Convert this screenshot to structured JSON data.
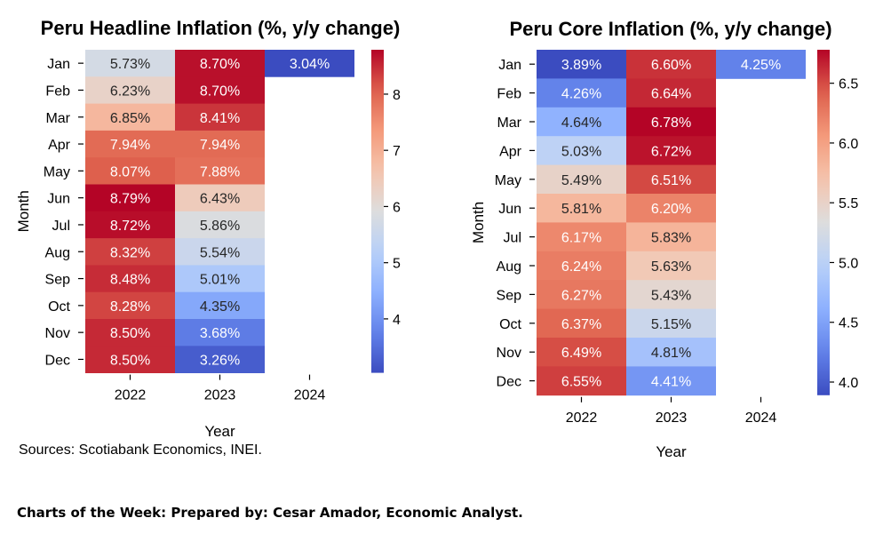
{
  "chart_data": [
    {
      "type": "heatmap",
      "title": "Peru Headline Inflation (%, y/y change)",
      "xlabel": "Year",
      "ylabel": "Month",
      "x": [
        "2022",
        "2023",
        "2024"
      ],
      "y": [
        "Jan",
        "Feb",
        "Mar",
        "Apr",
        "May",
        "Jun",
        "Jul",
        "Aug",
        "Sep",
        "Oct",
        "Nov",
        "Dec"
      ],
      "values": [
        [
          5.73,
          8.7,
          3.04
        ],
        [
          6.23,
          8.7,
          null
        ],
        [
          6.85,
          8.41,
          null
        ],
        [
          7.94,
          7.94,
          null
        ],
        [
          8.07,
          7.88,
          null
        ],
        [
          8.79,
          6.43,
          null
        ],
        [
          8.72,
          5.86,
          null
        ],
        [
          8.32,
          5.54,
          null
        ],
        [
          8.48,
          5.01,
          null
        ],
        [
          8.28,
          4.35,
          null
        ],
        [
          8.5,
          3.68,
          null
        ],
        [
          8.5,
          3.26,
          null
        ]
      ],
      "labels": [
        [
          "5.73%",
          "8.70%",
          "3.04%"
        ],
        [
          "6.23%",
          "8.70%",
          ""
        ],
        [
          "6.85%",
          "8.41%",
          ""
        ],
        [
          "7.94%",
          "7.94%",
          ""
        ],
        [
          "8.07%",
          "7.88%",
          ""
        ],
        [
          "8.79%",
          "6.43%",
          ""
        ],
        [
          "8.72%",
          "5.86%",
          ""
        ],
        [
          "8.32%",
          "5.54%",
          ""
        ],
        [
          "8.48%",
          "5.01%",
          ""
        ],
        [
          "8.28%",
          "4.35%",
          ""
        ],
        [
          "8.50%",
          "3.68%",
          ""
        ],
        [
          "8.50%",
          "3.26%",
          ""
        ]
      ],
      "vmin": 3.04,
      "vmax": 8.79,
      "colorbar_ticks": [
        "4",
        "5",
        "6",
        "7",
        "8"
      ],
      "colorbar_tick_values": [
        4,
        5,
        6,
        7,
        8
      ],
      "colormap": "coolwarm"
    },
    {
      "type": "heatmap",
      "title": "Peru Core Inflation (%, y/y change)",
      "xlabel": "Year",
      "ylabel": "Month",
      "x": [
        "2022",
        "2023",
        "2024"
      ],
      "y": [
        "Jan",
        "Feb",
        "Mar",
        "Apr",
        "May",
        "Jun",
        "Jul",
        "Aug",
        "Sep",
        "Oct",
        "Nov",
        "Dec"
      ],
      "values": [
        [
          3.89,
          6.6,
          4.25
        ],
        [
          4.26,
          6.64,
          null
        ],
        [
          4.64,
          6.78,
          null
        ],
        [
          5.03,
          6.72,
          null
        ],
        [
          5.49,
          6.51,
          null
        ],
        [
          5.81,
          6.2,
          null
        ],
        [
          6.17,
          5.83,
          null
        ],
        [
          6.24,
          5.63,
          null
        ],
        [
          6.27,
          5.43,
          null
        ],
        [
          6.37,
          5.15,
          null
        ],
        [
          6.49,
          4.81,
          null
        ],
        [
          6.55,
          4.41,
          null
        ]
      ],
      "labels": [
        [
          "3.89%",
          "6.60%",
          "4.25%"
        ],
        [
          "4.26%",
          "6.64%",
          ""
        ],
        [
          "4.64%",
          "6.78%",
          ""
        ],
        [
          "5.03%",
          "6.72%",
          ""
        ],
        [
          "5.49%",
          "6.51%",
          ""
        ],
        [
          "5.81%",
          "6.20%",
          ""
        ],
        [
          "6.17%",
          "5.83%",
          ""
        ],
        [
          "6.24%",
          "5.63%",
          ""
        ],
        [
          "6.27%",
          "5.43%",
          ""
        ],
        [
          "6.37%",
          "5.15%",
          ""
        ],
        [
          "6.49%",
          "4.81%",
          ""
        ],
        [
          "6.55%",
          "4.41%",
          ""
        ]
      ],
      "vmin": 3.89,
      "vmax": 6.78,
      "colorbar_ticks": [
        "4.0",
        "4.5",
        "5.0",
        "5.5",
        "6.0",
        "6.5"
      ],
      "colorbar_tick_values": [
        4.0,
        4.5,
        5.0,
        5.5,
        6.0,
        6.5
      ],
      "colormap": "coolwarm"
    }
  ],
  "source_note": "Sources: Scotiabank Economics, INEI.",
  "footer": "Charts of the Week:  Prepared by: Cesar Amador, Economic Analyst."
}
